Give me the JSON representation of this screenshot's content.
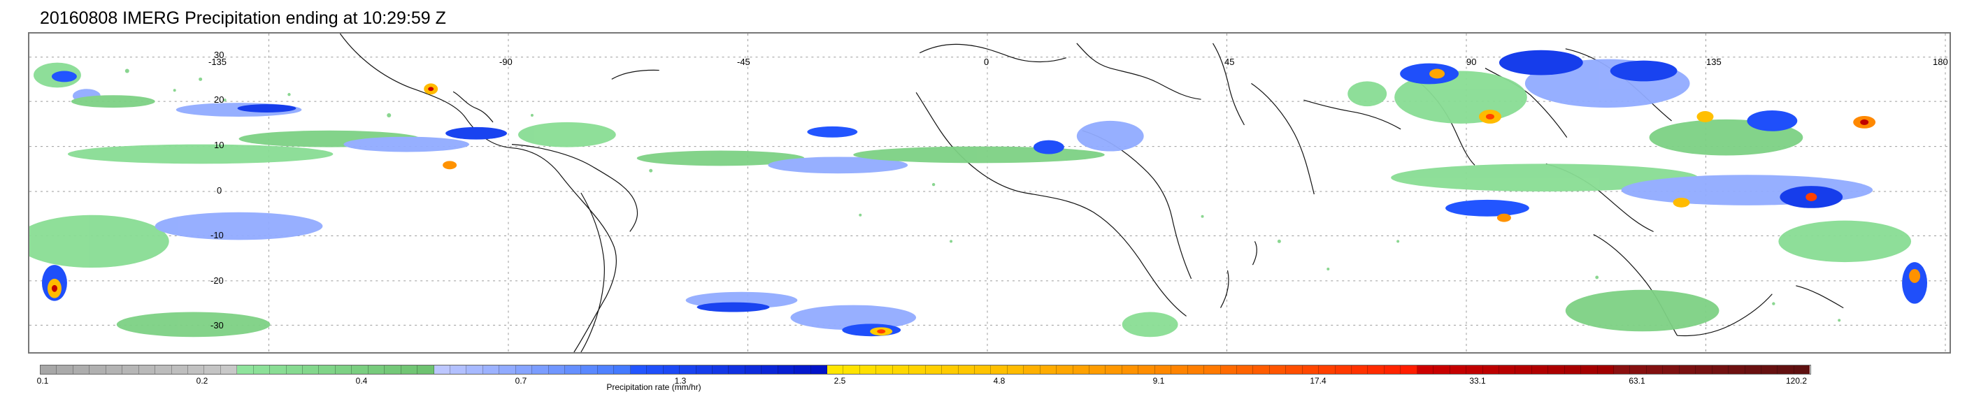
{
  "title": "20160808 IMERG Precipitation ending at 10:29:59 Z",
  "map": {
    "longitude_ticks": [
      "-135",
      "-90",
      "-45",
      "0",
      "45",
      "90",
      "135",
      "180"
    ],
    "latitude_ticks": [
      "30",
      "20",
      "10",
      "0",
      "-10",
      "-20",
      "-30"
    ],
    "grid": "dotted"
  },
  "colorbar": {
    "label": "Precipitation rate (mm/hr)",
    "tick_labels": [
      "0.1",
      "0.2",
      "0.4",
      "0.7",
      "1.3",
      "2.5",
      "4.8",
      "9.1",
      "17.4",
      "33.1",
      "63.1",
      "120.2"
    ],
    "colors": [
      "#a7a7a7",
      "#aaaaaa",
      "#adadad",
      "#b0b0b0",
      "#b3b3b3",
      "#b6b6b6",
      "#b9b9b9",
      "#bcbcbc",
      "#bebebe",
      "#c1c1c1",
      "#c4c4c4",
      "#c8c8c8",
      "#8fe39c",
      "#8ce098",
      "#89dd94",
      "#86da90",
      "#83d78c",
      "#80d488",
      "#7dd184",
      "#7ace80",
      "#77cb7c",
      "#74c878",
      "#71c574",
      "#6ec270",
      "#bdc7ff",
      "#b2c0ff",
      "#a7b9ff",
      "#9cb2ff",
      "#91abff",
      "#86a4ff",
      "#7b9dff",
      "#7096ff",
      "#658fff",
      "#5a88ff",
      "#4f81ff",
      "#447aff",
      "#2255ff",
      "#1f4ffa",
      "#1c49f5",
      "#1943f0",
      "#163deb",
      "#1337e6",
      "#1031e1",
      "#0d2bdc",
      "#0a25d7",
      "#071fd2",
      "#0419cd",
      "#0113c8",
      "#ffe600",
      "#ffe300",
      "#ffdf00",
      "#ffdb00",
      "#ffd700",
      "#ffd300",
      "#ffcf00",
      "#ffcb00",
      "#ffc700",
      "#ffc300",
      "#ffbf00",
      "#ffbb00",
      "#ffb000",
      "#ffab00",
      "#ffa600",
      "#ffa100",
      "#ff9c00",
      "#ff9700",
      "#ff9200",
      "#ff8d00",
      "#ff8800",
      "#ff8300",
      "#ff7e00",
      "#ff7900",
      "#ff6a00",
      "#ff6300",
      "#ff5c00",
      "#ff5500",
      "#ff4e00",
      "#ff4700",
      "#ff4000",
      "#ff3900",
      "#ff3200",
      "#ff2b00",
      "#ff2400",
      "#ff1d00",
      "#cc0000",
      "#c80000",
      "#c40000",
      "#c00000",
      "#bc0000",
      "#b80000",
      "#b40000",
      "#b00000",
      "#ac0000",
      "#a80000",
      "#a40000",
      "#a00000",
      "#8a1010",
      "#861010",
      "#821010",
      "#7e1010",
      "#7a1010",
      "#761010",
      "#721010",
      "#6e1010",
      "#6a1010",
      "#661010",
      "#621010",
      "#5e1010"
    ]
  }
}
